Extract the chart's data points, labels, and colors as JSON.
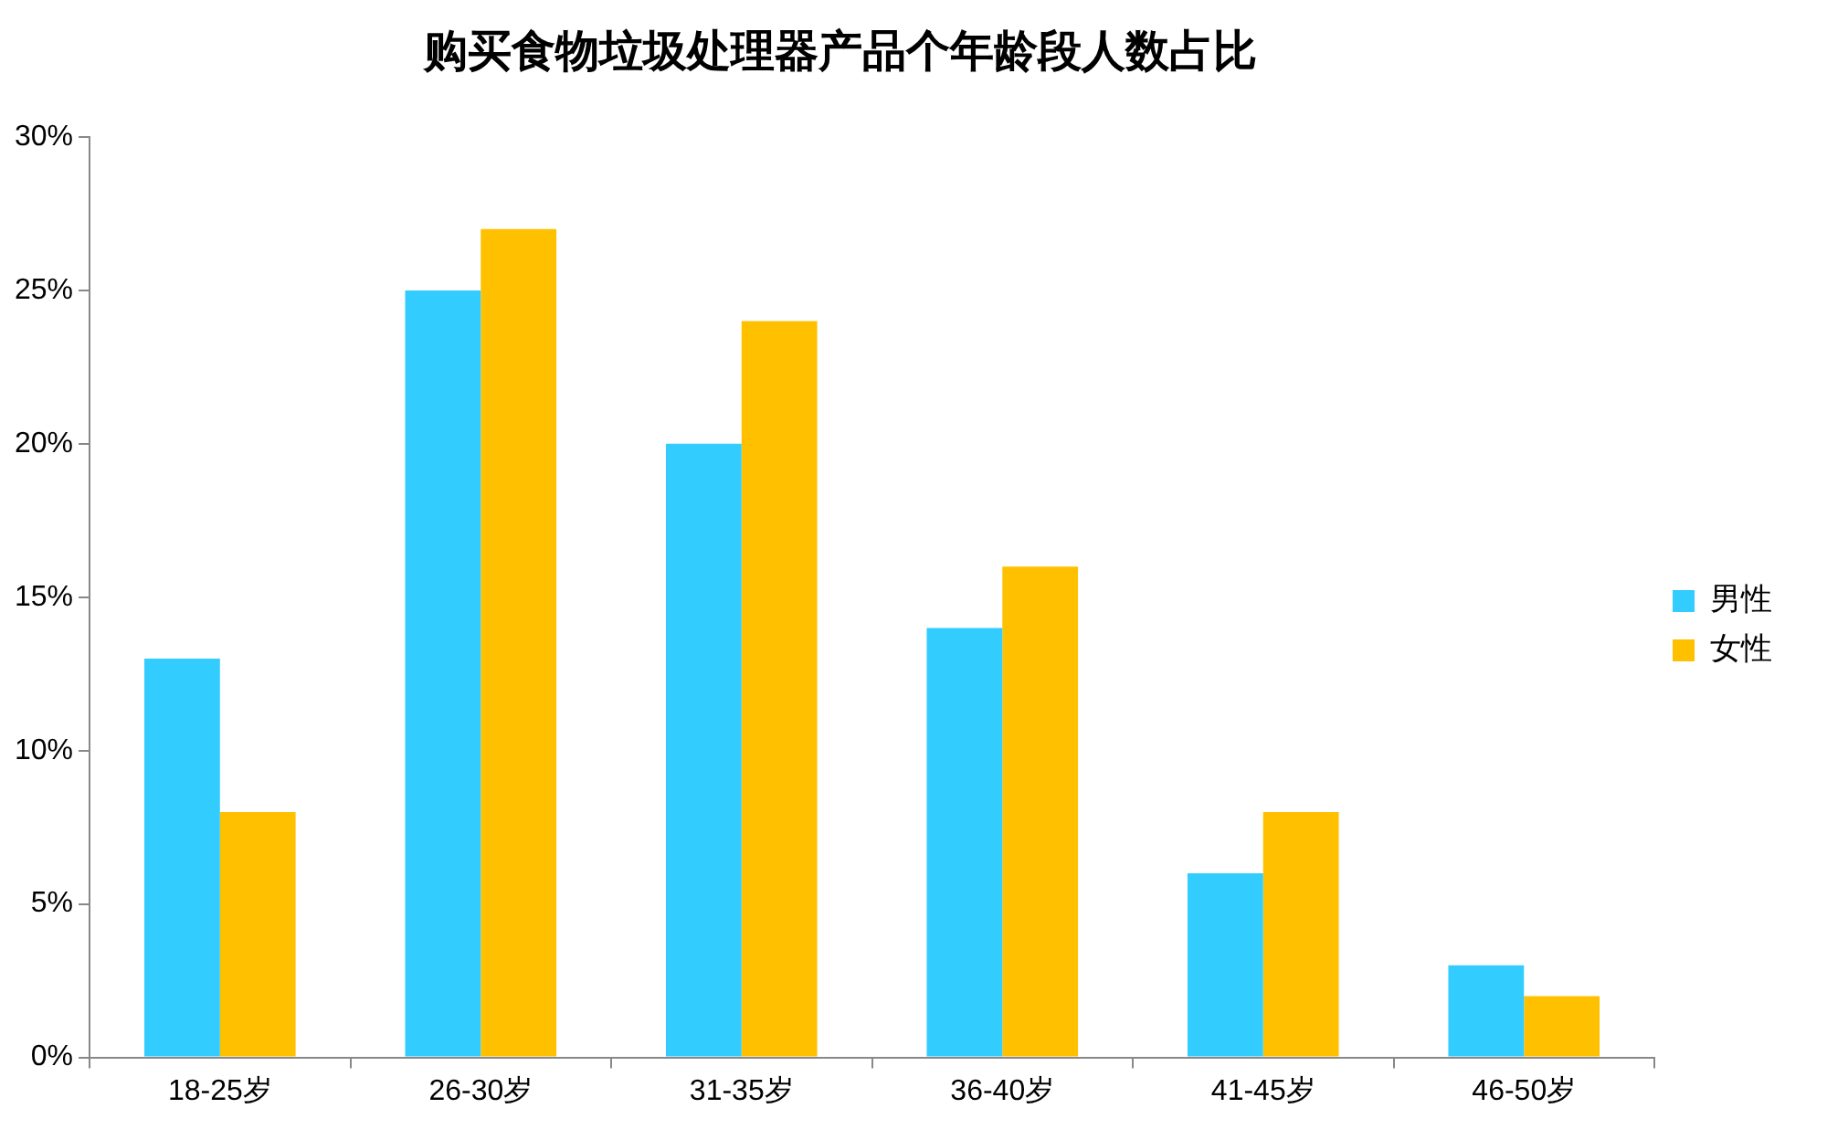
{
  "chart_data": {
    "type": "bar",
    "title": "购买食物垃圾处理器产品个年龄段人数占比",
    "categories": [
      "18-25岁",
      "26-30岁",
      "31-35岁",
      "36-40岁",
      "41-45岁",
      "46-50岁"
    ],
    "series": [
      {
        "name": "男性",
        "color": "#33ccff",
        "values": [
          13,
          25,
          20,
          14,
          6,
          3
        ]
      },
      {
        "name": "女性",
        "color": "#ffc000",
        "values": [
          8,
          27,
          24,
          16,
          8,
          2
        ]
      }
    ],
    "ylim": [
      0,
      30
    ],
    "yticks": [
      {
        "value": 0,
        "label": "0%"
      },
      {
        "value": 5,
        "label": "5%"
      },
      {
        "value": 10,
        "label": "10%"
      },
      {
        "value": 15,
        "label": "15%"
      },
      {
        "value": 20,
        "label": "20%"
      },
      {
        "value": 25,
        "label": "25%"
      },
      {
        "value": 30,
        "label": "30%"
      }
    ],
    "grid": false,
    "legend": "right"
  }
}
